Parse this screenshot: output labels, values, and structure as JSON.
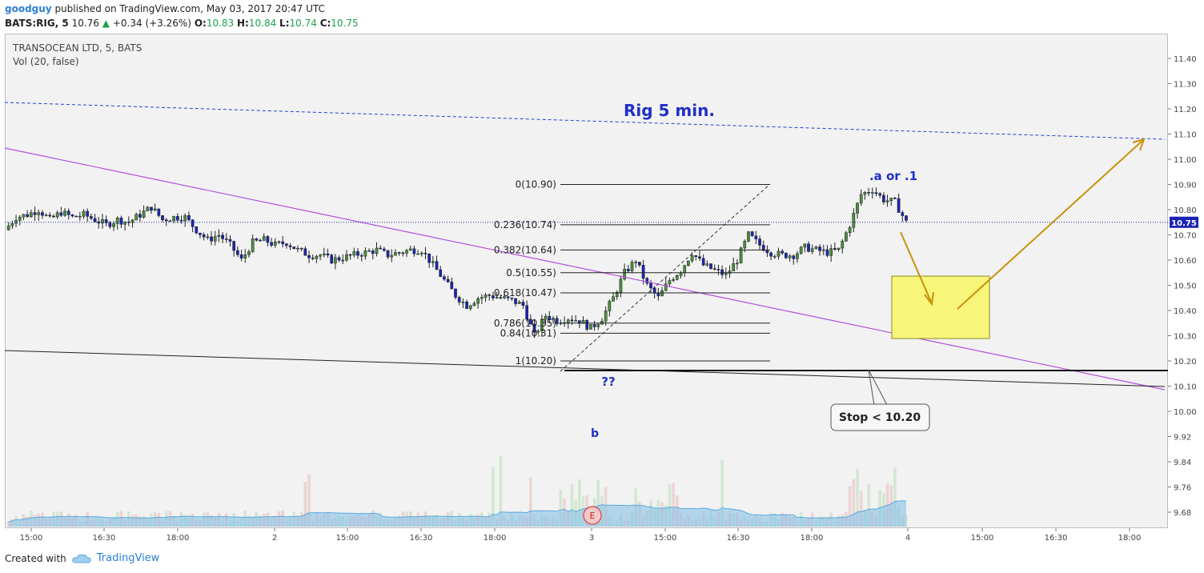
{
  "header": {
    "author": "goodguy",
    "published_text": " published on TradingView.com, May 03, 2017 20:47 UTC",
    "symbol": "BATS:RIG, 5",
    "last": "10.76",
    "change": "+0.34 (+3.26%)",
    "o_label": "O:",
    "o": "10.83",
    "h_label": "H:",
    "h": "10.84",
    "l_label": "L:",
    "l": "10.74",
    "c_label": "C:",
    "c": "10.75"
  },
  "legend": {
    "symbol_name": "TRANSOCEAN LTD, 5, BATS",
    "volume": "Vol (20, false)"
  },
  "footer": {
    "created_with": "Created with",
    "brand": "TradingView"
  },
  "colors": {
    "up_candle": "#4a8f3c",
    "down_candle": "#1c24b4",
    "purple_trend": "#b44fe0",
    "blue_channel": "#2a3fd4",
    "annotation_blue": "#1f2fc8",
    "arrow": "#c8920c",
    "target_box": "#f7f57a",
    "volume_ma": "#7fbde8"
  },
  "chart_data": {
    "type": "candlestick",
    "title": "Rig 5 min.",
    "ylim": [
      9.62,
      11.48
    ],
    "y_ticks": [
      "11.40",
      "11.30",
      "11.20",
      "11.10",
      "11.00",
      "10.90",
      "10.80",
      "10.70",
      "10.60",
      "10.50",
      "10.40",
      "10.30",
      "10.20",
      "10.10",
      "10.00",
      "9.92",
      "9.84",
      "9.76",
      "9.68"
    ],
    "x_ticks": [
      "15:00",
      "16:30",
      "18:00",
      "2",
      "15:00",
      "16:30",
      "18:00",
      "3",
      "15:00",
      "16:30",
      "18:00",
      "4",
      "15:00",
      "16:30",
      "18:00"
    ],
    "last_price_label": "10.75",
    "last_price": 10.75,
    "fib_levels": [
      {
        "label": "0(10.90)",
        "price": 10.9
      },
      {
        "label": "0.236(10.74)",
        "price": 10.74
      },
      {
        "label": "0.382(10.64)",
        "price": 10.64
      },
      {
        "label": "0.5(10.55)",
        "price": 10.55
      },
      {
        "label": "0.618(10.47)",
        "price": 10.47
      },
      {
        "label": "0.786(10.35)",
        "price": 10.35
      },
      {
        "label": "0.84(10.31)",
        "price": 10.31
      },
      {
        "label": "1(10.20)",
        "price": 10.2
      }
    ],
    "annotations": {
      "wave_top": ".a or .1",
      "wave_low": "??",
      "wave_b": "b",
      "earnings_marker": "E",
      "stop_callout": "Stop < 10.20"
    },
    "path_points": [
      [
        0,
        10.72
      ],
      [
        3,
        10.77
      ],
      [
        6,
        10.78
      ],
      [
        9,
        10.8
      ],
      [
        12,
        10.76
      ],
      [
        15,
        10.79
      ],
      [
        18,
        10.77
      ],
      [
        21,
        10.78
      ],
      [
        24,
        10.76
      ],
      [
        27,
        10.74
      ],
      [
        30,
        10.76
      ],
      [
        33,
        10.75
      ],
      [
        36,
        10.78
      ],
      [
        39,
        10.81
      ],
      [
        42,
        10.76
      ],
      [
        45,
        10.77
      ],
      [
        48,
        10.77
      ],
      [
        51,
        10.72
      ],
      [
        54,
        10.68
      ],
      [
        57,
        10.7
      ],
      [
        60,
        10.66
      ],
      [
        63,
        10.6
      ],
      [
        66,
        10.67
      ],
      [
        69,
        10.68
      ],
      [
        72,
        10.66
      ],
      [
        75,
        10.67
      ],
      [
        78,
        10.64
      ],
      [
        81,
        10.62
      ],
      [
        84,
        10.62
      ],
      [
        87,
        10.6
      ],
      [
        90,
        10.61
      ],
      [
        93,
        10.62
      ],
      [
        96,
        10.63
      ],
      [
        99,
        10.64
      ],
      [
        102,
        10.62
      ],
      [
        105,
        10.63
      ],
      [
        108,
        10.64
      ],
      [
        111,
        10.64
      ],
      [
        114,
        10.58
      ],
      [
        117,
        10.52
      ],
      [
        120,
        10.46
      ],
      [
        123,
        10.42
      ],
      [
        126,
        10.45
      ],
      [
        129,
        10.46
      ],
      [
        132,
        10.45
      ],
      [
        135,
        10.44
      ],
      [
        138,
        10.42
      ],
      [
        141,
        10.3
      ],
      [
        144,
        10.38
      ],
      [
        147,
        10.36
      ],
      [
        150,
        10.37
      ],
      [
        153,
        10.36
      ],
      [
        156,
        10.33
      ],
      [
        159,
        10.37
      ],
      [
        162,
        10.45
      ],
      [
        165,
        10.55
      ],
      [
        168,
        10.6
      ],
      [
        171,
        10.5
      ],
      [
        174,
        10.45
      ],
      [
        177,
        10.52
      ],
      [
        180,
        10.56
      ],
      [
        183,
        10.63
      ],
      [
        186,
        10.58
      ],
      [
        189,
        10.56
      ],
      [
        192,
        10.54
      ],
      [
        195,
        10.6
      ],
      [
        198,
        10.7
      ],
      [
        201,
        10.66
      ],
      [
        204,
        10.63
      ],
      [
        207,
        10.62
      ],
      [
        210,
        10.62
      ],
      [
        213,
        10.65
      ],
      [
        216,
        10.64
      ],
      [
        219,
        10.63
      ],
      [
        222,
        10.64
      ],
      [
        225,
        10.74
      ],
      [
        228,
        10.86
      ],
      [
        231,
        10.88
      ],
      [
        234,
        10.84
      ],
      [
        237,
        10.83
      ],
      [
        240,
        10.75
      ]
    ],
    "volume_hint": "volume histogram with 20-period moving average"
  }
}
